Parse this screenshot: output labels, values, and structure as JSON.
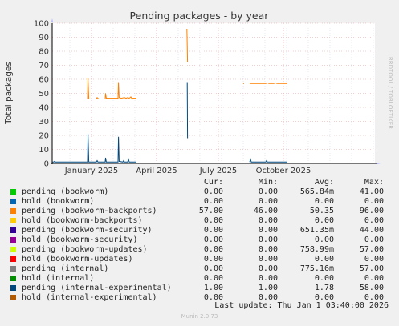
{
  "chart_data": {
    "type": "line",
    "title": "Pending packages - by year",
    "ylabel": "Total packages",
    "watermark": "RRDTOOL / TOBI OETIKER",
    "ylim": [
      0,
      100
    ],
    "yticks": [
      0,
      10,
      20,
      30,
      40,
      50,
      60,
      70,
      80,
      90,
      100
    ],
    "xticks": [
      "January 2025",
      "April 2025",
      "July 2025",
      "October 2025"
    ],
    "grid": true,
    "series": [
      {
        "name": "pending (bookworm)",
        "color": "#00cc00"
      },
      {
        "name": "hold (bookworm)",
        "color": "#0066b3"
      },
      {
        "name": "pending (bookworm-backports)",
        "color": "#ff8000",
        "segments": [
          {
            "points": [
              [
                0,
                46
              ],
              [
                44,
                46
              ],
              [
                44.6,
                61
              ],
              [
                45.6,
                46
              ],
              [
                55,
                46
              ],
              [
                56,
                47
              ],
              [
                58,
                46
              ],
              [
                66,
                46
              ],
              [
                66.5,
                50
              ],
              [
                67.4,
                46.5
              ],
              [
                82,
                46.5
              ],
              [
                82.6,
                58
              ],
              [
                83.4,
                47
              ],
              [
                86,
                46.5
              ],
              [
                90,
                47
              ],
              [
                92,
                46.5
              ],
              [
                94,
                47
              ],
              [
                96,
                46.5
              ],
              [
                98,
                47.5
              ],
              [
                99,
                46.5
              ],
              [
                105,
                46.5
              ]
            ]
          },
          {
            "points": [
              [
                167.8,
                96
              ],
              [
                168.6,
                72
              ]
            ]
          },
          {
            "points": [
              [
                238,
                57
              ],
              [
                239,
                57
              ]
            ]
          },
          {
            "points": [
              [
                246,
                57
              ],
              [
                266,
                57
              ],
              [
                268,
                57.5
              ],
              [
                270,
                57
              ],
              [
                276,
                57
              ],
              [
                278,
                57.5
              ],
              [
                280,
                57
              ],
              [
                293,
                57
              ]
            ]
          }
        ]
      },
      {
        "name": "hold (bookworm-backports)",
        "color": "#ffcc00"
      },
      {
        "name": "pending (bookworm-security)",
        "color": "#330099"
      },
      {
        "name": "hold (bookworm-security)",
        "color": "#990099"
      },
      {
        "name": "pending (bookworm-updates)",
        "color": "#ccff00"
      },
      {
        "name": "hold (bookworm-updates)",
        "color": "#ff0000"
      },
      {
        "name": "pending (internal)",
        "color": "#808080",
        "segments": [
          {
            "points": [
              [
                0,
                0
              ],
              [
                105,
                0
              ]
            ]
          },
          {
            "points": [
              [
                246,
                0
              ],
              [
                293,
                0
              ]
            ]
          }
        ]
      },
      {
        "name": "hold (internal)",
        "color": "#008f00"
      },
      {
        "name": "pending (internal-experimental)",
        "color": "#00487d",
        "segments": [
          {
            "points": [
              [
                0,
                1
              ],
              [
                2,
                1
              ],
              [
                3,
                1.5
              ],
              [
                4,
                1
              ],
              [
                44,
                1
              ],
              [
                44.6,
                21
              ],
              [
                45.6,
                1
              ],
              [
                55,
                1
              ],
              [
                56,
                2
              ],
              [
                57,
                1
              ],
              [
                66,
                1
              ],
              [
                66.5,
                4
              ],
              [
                67.4,
                1
              ],
              [
                82,
                1
              ],
              [
                82.6,
                19
              ],
              [
                83.4,
                1.5
              ],
              [
                88,
                1
              ],
              [
                89,
                2
              ],
              [
                90,
                1
              ],
              [
                94,
                1
              ],
              [
                95,
                3
              ],
              [
                96,
                1
              ],
              [
                105,
                1
              ]
            ]
          },
          {
            "points": [
              [
                168.2,
                58
              ],
              [
                168.6,
                18
              ]
            ]
          },
          {
            "points": [
              [
                246,
                1
              ],
              [
                247,
                3
              ],
              [
                248,
                1
              ],
              [
                266,
                1
              ],
              [
                267,
                2
              ],
              [
                268,
                1
              ],
              [
                293,
                1
              ]
            ]
          }
        ]
      },
      {
        "name": "hold (internal-experimental)",
        "color": "#b35a00"
      }
    ],
    "legend_headers": [
      "Cur:",
      "Min:",
      "Avg:",
      "Max:"
    ],
    "legend_rows": [
      {
        "name": "pending (bookworm)",
        "cur": "0.00",
        "min": "0.00",
        "avg": "565.84m",
        "max": "41.00"
      },
      {
        "name": "hold (bookworm)",
        "cur": "0.00",
        "min": "0.00",
        "avg": "0.00",
        "max": "0.00"
      },
      {
        "name": "pending (bookworm-backports)",
        "cur": "57.00",
        "min": "46.00",
        "avg": "50.35",
        "max": "96.00"
      },
      {
        "name": "hold (bookworm-backports)",
        "cur": "0.00",
        "min": "0.00",
        "avg": "0.00",
        "max": "0.00"
      },
      {
        "name": "pending (bookworm-security)",
        "cur": "0.00",
        "min": "0.00",
        "avg": "651.35m",
        "max": "44.00"
      },
      {
        "name": "hold (bookworm-security)",
        "cur": "0.00",
        "min": "0.00",
        "avg": "0.00",
        "max": "0.00"
      },
      {
        "name": "pending (bookworm-updates)",
        "cur": "0.00",
        "min": "0.00",
        "avg": "758.99m",
        "max": "57.00"
      },
      {
        "name": "hold (bookworm-updates)",
        "cur": "0.00",
        "min": "0.00",
        "avg": "0.00",
        "max": "0.00"
      },
      {
        "name": "pending (internal)",
        "cur": "0.00",
        "min": "0.00",
        "avg": "775.16m",
        "max": "57.00"
      },
      {
        "name": "hold (internal)",
        "cur": "0.00",
        "min": "0.00",
        "avg": "0.00",
        "max": "0.00"
      },
      {
        "name": "pending (internal-experimental)",
        "cur": "1.00",
        "min": "1.00",
        "avg": "1.78",
        "max": "58.00"
      },
      {
        "name": "hold (internal-experimental)",
        "cur": "0.00",
        "min": "0.00",
        "avg": "0.00",
        "max": "0.00"
      }
    ],
    "last_update": "Last update: Thu Jan  1 03:40:00 2026",
    "footer": "Munin 2.0.73"
  }
}
